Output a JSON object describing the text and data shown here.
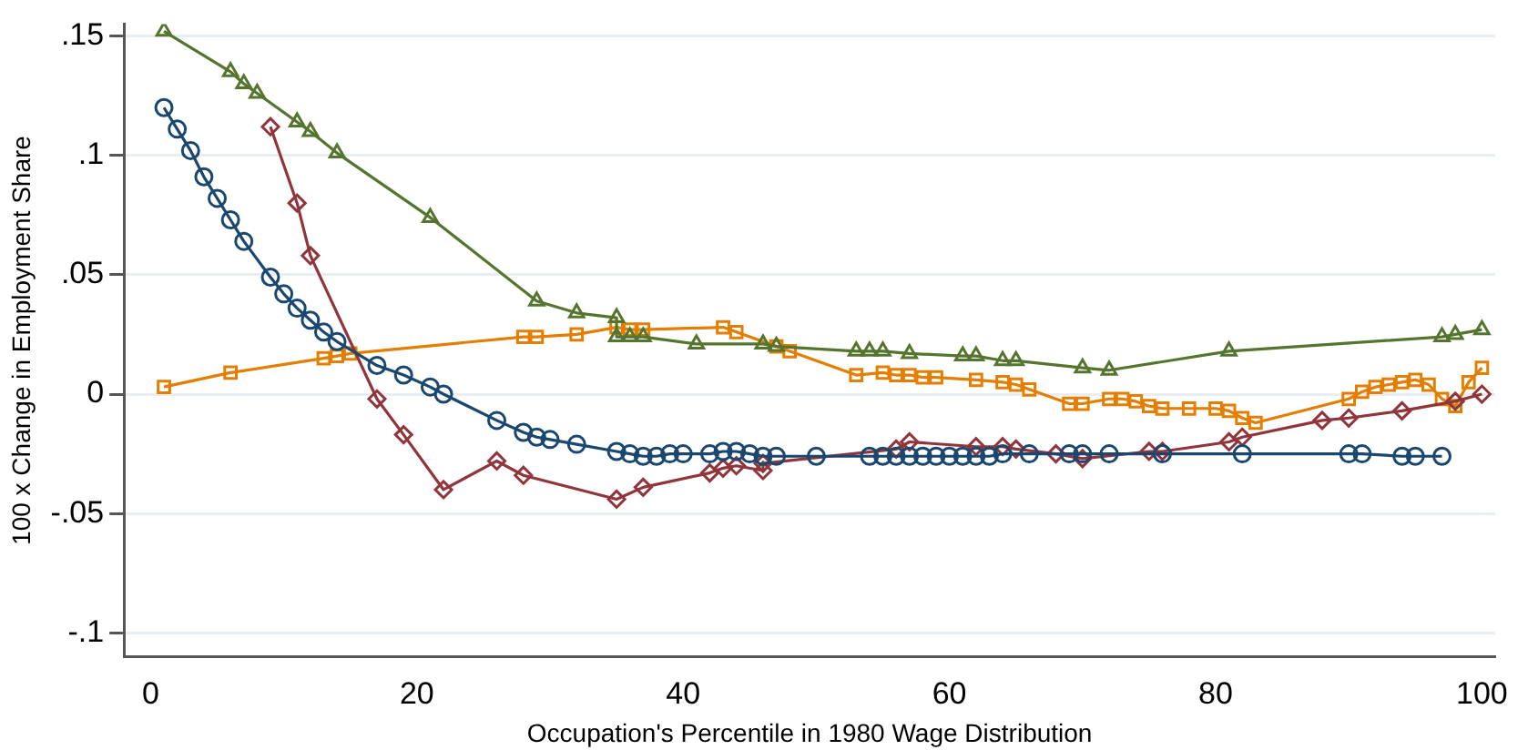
{
  "chart_data": {
    "type": "line",
    "xlabel": "Occupation's Percentile in 1980 Wage Distribution",
    "ylabel": "100 x Change in Employment Share",
    "grid": "y",
    "legend": false,
    "xlim": [
      -2,
      101
    ],
    "xticks": [
      0,
      20,
      40,
      60,
      80,
      100
    ],
    "ylim": [
      -0.11,
      0.155
    ],
    "yticks": [
      {
        "value": -0.1,
        "label": "-.1"
      },
      {
        "value": -0.05,
        "label": "-.05"
      },
      0,
      {
        "value": 0.05,
        "label": ".05"
      },
      {
        "value": 0.1,
        "label": ".1"
      },
      {
        "value": 0.15,
        "label": ".15"
      }
    ],
    "series": [
      {
        "color": "#1a476f",
        "marker": "circle",
        "x": [
          1,
          2,
          3,
          4,
          5,
          6,
          7,
          9,
          10,
          11,
          12,
          13,
          14,
          17,
          19,
          21,
          22,
          26,
          28,
          29,
          30,
          32,
          35,
          36,
          37,
          38,
          39,
          40,
          42,
          43,
          44,
          45,
          46,
          47,
          50,
          54,
          55,
          56,
          57,
          58,
          59,
          60,
          61,
          62,
          63,
          64,
          66,
          69,
          70,
          72,
          76,
          82,
          90,
          91,
          94,
          95,
          97
        ],
        "values": [
          0.12,
          0.111,
          0.102,
          0.091,
          0.082,
          0.073,
          0.064,
          0.049,
          0.042,
          0.036,
          0.031,
          0.026,
          0.022,
          0.012,
          0.008,
          0.003,
          0,
          -0.011,
          -0.016,
          -0.018,
          -0.019,
          -0.021,
          -0.024,
          -0.025,
          -0.026,
          -0.026,
          -0.025,
          -0.025,
          -0.025,
          -0.024,
          -0.024,
          -0.025,
          -0.026,
          -0.026,
          -0.026,
          -0.026,
          -0.026,
          -0.026,
          -0.026,
          -0.026,
          -0.026,
          -0.026,
          -0.026,
          -0.026,
          -0.026,
          -0.025,
          -0.025,
          -0.025,
          -0.025,
          -0.025,
          -0.025,
          -0.025,
          -0.025,
          -0.025,
          -0.026,
          -0.026,
          -0.026
        ]
      },
      {
        "color": "#90353b",
        "marker": "diamond",
        "x": [
          9,
          11,
          12,
          17,
          19,
          22,
          26,
          28,
          35,
          37,
          42,
          43,
          44,
          46,
          46,
          56,
          57,
          62,
          64,
          65,
          68,
          70,
          75,
          76,
          81,
          82,
          88,
          90,
          94,
          98,
          100
        ],
        "values": [
          0.112,
          0.08,
          0.058,
          -0.002,
          -0.017,
          -0.04,
          -0.028,
          -0.034,
          -0.044,
          -0.039,
          -0.033,
          -0.031,
          -0.03,
          -0.032,
          -0.029,
          -0.023,
          -0.02,
          -0.022,
          -0.022,
          -0.023,
          -0.025,
          -0.027,
          -0.024,
          -0.024,
          -0.02,
          -0.018,
          -0.011,
          -0.01,
          -0.007,
          -0.003,
          0
        ]
      },
      {
        "color": "#55752f",
        "marker": "triangle",
        "x": [
          1,
          6,
          7,
          8,
          11,
          12,
          14,
          21,
          29,
          32,
          35,
          35,
          36,
          37,
          41,
          46,
          47,
          53,
          54,
          55,
          57,
          61,
          62,
          64,
          65,
          70,
          72,
          81,
          97,
          98,
          100
        ],
        "values": [
          0.152,
          0.135,
          0.13,
          0.126,
          0.114,
          0.11,
          0.101,
          0.074,
          0.039,
          0.034,
          0.032,
          0.024,
          0.024,
          0.024,
          0.021,
          0.021,
          0.02,
          0.018,
          0.018,
          0.018,
          0.017,
          0.016,
          0.016,
          0.014,
          0.014,
          0.011,
          0.01,
          0.018,
          0.024,
          0.025,
          0.027
        ]
      },
      {
        "color": "#e37e00",
        "marker": "square",
        "x": [
          1,
          6,
          13,
          14,
          15,
          28,
          29,
          32,
          35,
          36,
          37,
          43,
          44,
          47,
          48,
          53,
          55,
          56,
          57,
          58,
          59,
          62,
          64,
          65,
          66,
          69,
          70,
          72,
          73,
          74,
          75,
          76,
          78,
          80,
          81,
          82,
          83,
          90,
          91,
          92,
          93,
          94,
          95,
          96,
          97,
          98,
          99,
          100
        ],
        "values": [
          0.003,
          0.009,
          0.015,
          0.016,
          0.017,
          0.024,
          0.024,
          0.025,
          0.028,
          0.027,
          0.027,
          0.028,
          0.026,
          0.02,
          0.018,
          0.008,
          0.009,
          0.008,
          0.008,
          0.007,
          0.007,
          0.006,
          0.005,
          0.004,
          0.002,
          -0.004,
          -0.004,
          -0.002,
          -0.002,
          -0.003,
          -0.005,
          -0.006,
          -0.006,
          -0.006,
          -0.007,
          -0.01,
          -0.012,
          -0.002,
          0.001,
          0.003,
          0.004,
          0.005,
          0.006,
          0.004,
          -0.002,
          -0.005,
          0.005,
          0.011
        ]
      }
    ]
  }
}
